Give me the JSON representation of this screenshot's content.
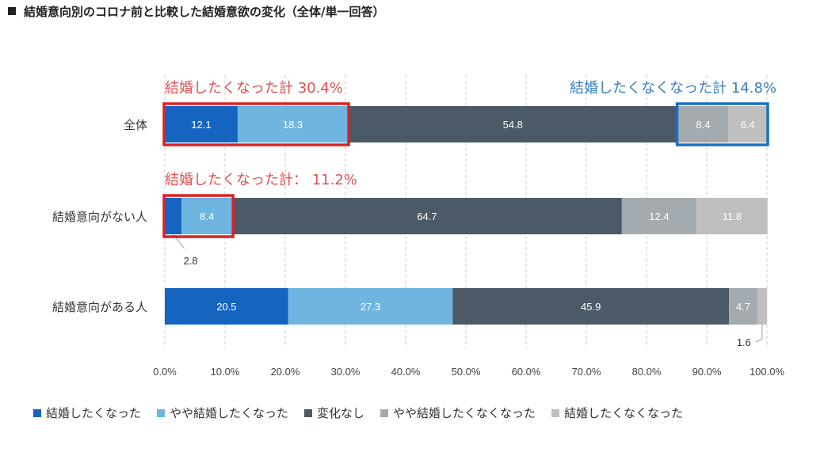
{
  "title": "結婚意向別のコロナ前と比較した結婚意欲の変化（全体/単一回答）",
  "chart_data": {
    "type": "bar",
    "orientation": "horizontal",
    "stacked": true,
    "title": "結婚意向別のコロナ前と比較した結婚意欲の変化（全体/単一回答）",
    "categories": [
      "全体",
      "結婚意向がない人",
      "結婚意向がある人"
    ],
    "series": [
      {
        "name": "結婚したくなった",
        "color": "#1565c0",
        "values": [
          12.1,
          2.8,
          20.5
        ]
      },
      {
        "name": "やや結婚したくなった",
        "color": "#6fb5e0",
        "values": [
          18.3,
          8.4,
          27.3
        ]
      },
      {
        "name": "変化なし",
        "color": "#4b5a66",
        "values": [
          54.8,
          64.7,
          45.9
        ]
      },
      {
        "name": "やや結婚したくなくなった",
        "color": "#a3aab0",
        "values": [
          8.4,
          12.4,
          4.7
        ]
      },
      {
        "name": "結婚したくなくなった",
        "color": "#bfbfbf",
        "values": [
          6.4,
          11.8,
          1.6
        ]
      }
    ],
    "xlim": [
      0,
      100
    ],
    "xticks": [
      "0.0%",
      "10.0%",
      "20.0%",
      "30.0%",
      "40.0%",
      "50.0%",
      "60.0%",
      "70.0%",
      "80.0%",
      "90.0%",
      "100.0%"
    ],
    "grid": "vertical dashed",
    "legend_position": "bottom",
    "outside_labels": [
      {
        "category": 1,
        "series": 0,
        "text": "2.8"
      },
      {
        "category": 2,
        "series": 4,
        "text": "1.6"
      }
    ],
    "annotations": [
      {
        "category": 0,
        "from_series": 0,
        "to_series": 1,
        "color": "#e02020",
        "label_color": "#e05050",
        "text": "結婚したくなった計 30.4%"
      },
      {
        "category": 0,
        "from_series": 3,
        "to_series": 4,
        "color": "#1a6fc0",
        "label_color": "#3a7fc0",
        "text": "結婚したくなくなった計 14.8%"
      },
      {
        "category": 1,
        "from_series": 0,
        "to_series": 1,
        "color": "#e02020",
        "label_color": "#e05050",
        "text": "結婚したくなった計： 11.2%"
      }
    ]
  }
}
